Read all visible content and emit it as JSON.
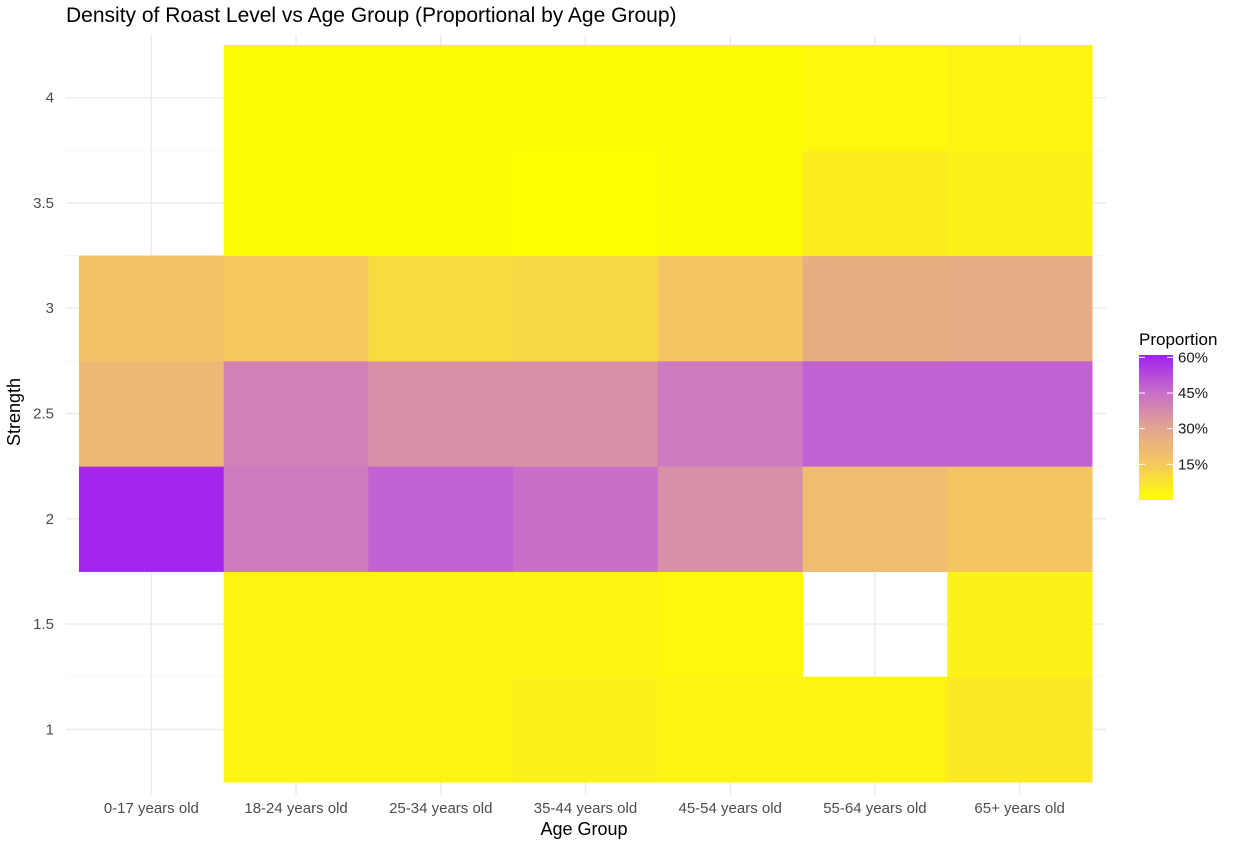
{
  "chart_data": {
    "type": "heatmap",
    "title": "Density of Roast Level vs Age Group (Proportional by Age Group)",
    "xlabel": "Age Group",
    "ylabel": "Strength",
    "x_categories": [
      "0-17 years old",
      "18-24 years old",
      "25-34 years old",
      "35-44 years old",
      "45-54 years old",
      "55-64 years old",
      "65+ years old"
    ],
    "y_values": [
      1,
      1.5,
      2,
      2.5,
      3,
      3.5,
      4
    ],
    "y_ticks": [
      "1",
      "1.5",
      "2",
      "2.5",
      "3",
      "3.5",
      "4"
    ],
    "ylim": [
      0.75,
      4.25
    ],
    "grid": true,
    "legend": {
      "title": "Proportion",
      "position": "right",
      "ticks": [
        "60%",
        "45%",
        "30%",
        "15%"
      ],
      "tick_values": [
        60,
        45,
        30,
        15
      ],
      "range": [
        0,
        61
      ],
      "colors": [
        "#ffff00",
        "#f5c860",
        "#e0a58f",
        "#c86ccd",
        "#a020f0"
      ]
    },
    "cells": [
      {
        "x": "0-17 years old",
        "y": 2,
        "value": 60
      },
      {
        "x": "0-17 years old",
        "y": 2.5,
        "value": 22
      },
      {
        "x": "0-17 years old",
        "y": 3,
        "value": 18
      },
      {
        "x": "18-24 years old",
        "y": 1,
        "value": 3
      },
      {
        "x": "18-24 years old",
        "y": 1.5,
        "value": 3
      },
      {
        "x": "18-24 years old",
        "y": 2,
        "value": 42
      },
      {
        "x": "18-24 years old",
        "y": 2.5,
        "value": 40
      },
      {
        "x": "18-24 years old",
        "y": 3,
        "value": 15
      },
      {
        "x": "18-24 years old",
        "y": 3.5,
        "value": 1
      },
      {
        "x": "18-24 years old",
        "y": 4,
        "value": 1
      },
      {
        "x": "25-34 years old",
        "y": 1,
        "value": 3
      },
      {
        "x": "25-34 years old",
        "y": 1.5,
        "value": 3
      },
      {
        "x": "25-34 years old",
        "y": 2,
        "value": 48
      },
      {
        "x": "25-34 years old",
        "y": 2.5,
        "value": 36
      },
      {
        "x": "25-34 years old",
        "y": 3,
        "value": 10
      },
      {
        "x": "25-34 years old",
        "y": 3.5,
        "value": 1
      },
      {
        "x": "25-34 years old",
        "y": 4,
        "value": 1
      },
      {
        "x": "35-44 years old",
        "y": 1,
        "value": 4
      },
      {
        "x": "35-44 years old",
        "y": 1.5,
        "value": 3
      },
      {
        "x": "35-44 years old",
        "y": 2,
        "value": 45
      },
      {
        "x": "35-44 years old",
        "y": 2.5,
        "value": 36
      },
      {
        "x": "35-44 years old",
        "y": 3,
        "value": 11
      },
      {
        "x": "35-44 years old",
        "y": 3.5,
        "value": 0
      },
      {
        "x": "35-44 years old",
        "y": 4,
        "value": 1
      },
      {
        "x": "45-54 years old",
        "y": 1,
        "value": 3
      },
      {
        "x": "45-54 years old",
        "y": 1.5,
        "value": 2
      },
      {
        "x": "45-54 years old",
        "y": 2,
        "value": 36
      },
      {
        "x": "45-54 years old",
        "y": 2.5,
        "value": 42
      },
      {
        "x": "45-54 years old",
        "y": 3,
        "value": 16
      },
      {
        "x": "45-54 years old",
        "y": 3.5,
        "value": 1
      },
      {
        "x": "45-54 years old",
        "y": 4,
        "value": 1
      },
      {
        "x": "55-64 years old",
        "y": 1,
        "value": 3
      },
      {
        "x": "55-64 years old",
        "y": 2,
        "value": 20
      },
      {
        "x": "55-64 years old",
        "y": 2.5,
        "value": 48
      },
      {
        "x": "55-64 years old",
        "y": 3,
        "value": 26
      },
      {
        "x": "55-64 years old",
        "y": 3.5,
        "value": 5
      },
      {
        "x": "55-64 years old",
        "y": 4,
        "value": 2
      },
      {
        "x": "65+ years old",
        "y": 1,
        "value": 6
      },
      {
        "x": "65+ years old",
        "y": 1.5,
        "value": 4
      },
      {
        "x": "65+ years old",
        "y": 2,
        "value": 16
      },
      {
        "x": "65+ years old",
        "y": 2.5,
        "value": 48
      },
      {
        "x": "65+ years old",
        "y": 3,
        "value": 27
      },
      {
        "x": "65+ years old",
        "y": 3.5,
        "value": 4
      },
      {
        "x": "65+ years old",
        "y": 4,
        "value": 3
      }
    ]
  }
}
